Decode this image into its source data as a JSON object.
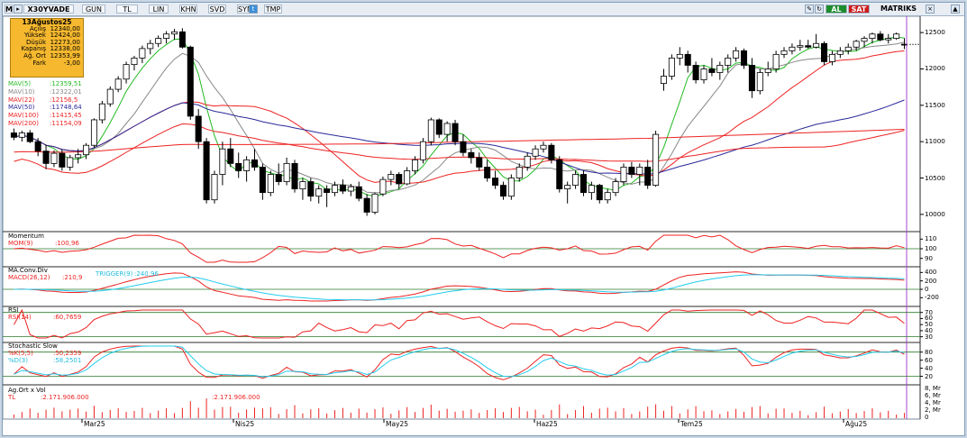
{
  "toolbar": {
    "symbol": "X30YVADE",
    "buttons": [
      "GUN",
      "TL",
      "LIN",
      "KHN",
      "SVD",
      "SYM",
      "TMP"
    ],
    "buy_label": "AL",
    "sell_label": "SAT",
    "brand": "MATRIKS"
  },
  "ohlc": {
    "date": "13Ağustos25",
    "rows": [
      {
        "k": "Açılış",
        "v": "12340,00"
      },
      {
        "k": "Yüksek",
        "v": "12424,00"
      },
      {
        "k": "Düşük",
        "v": "12273,00"
      },
      {
        "k": "Kapanış",
        "v": "12338,00"
      },
      {
        "k": "Ağ. Ort",
        "v": "12353,99"
      },
      {
        "k": "Fark",
        "v": "-3,00"
      }
    ]
  },
  "ma_legend": [
    {
      "name": "MAV(5)",
      "value": ":12359,51",
      "color": "#22bb22"
    },
    {
      "name": "MAV(10)",
      "value": ":12322,01",
      "color": "#888888"
    },
    {
      "name": "MAV(22)",
      "value": ":12156,5",
      "color": "#ee2222"
    },
    {
      "name": "MAV(50)",
      "value": ":11748,64",
      "color": "#2a2a9a"
    },
    {
      "name": "MAV(100)",
      "value": ":11415,45",
      "color": "#ee2222"
    },
    {
      "name": "MAV(200)",
      "value": ":11154,09",
      "color": "#ee2222"
    }
  ],
  "main_y_ticks": [
    "12500",
    "12000",
    "11500",
    "11000",
    "10500",
    "10000"
  ],
  "x_labels": [
    "Mar25",
    "Nis25",
    "May25",
    "Haz25",
    "Tem25",
    "Ağu25"
  ],
  "panels": {
    "momentum": {
      "title": "Momentum",
      "legend": "MOM(9)",
      "value": ":100,96",
      "ticks": [
        "110",
        "100",
        "90"
      ]
    },
    "macd": {
      "title": "MA.Conv.Div",
      "legend": "MACD(26,12)",
      "value": ":210,9",
      "trigger": "TRIGGER(9)",
      "trigger_value": ":240,96",
      "ticks": [
        "400",
        "200",
        "0",
        "-200"
      ]
    },
    "rsi": {
      "title": "RSI",
      "legend": "RSI(14)",
      "value": ":60,7659",
      "ticks": [
        "70",
        "60",
        "50",
        "40",
        "30"
      ]
    },
    "stoch": {
      "title": "Stochastic Slow",
      "k_legend": "%K(5,5)",
      "k_value": ":50,2359",
      "d_legend": "%D(3)",
      "d_value": ":58,2501",
      "ticks": [
        "80",
        "60",
        "40",
        "20"
      ]
    },
    "volume": {
      "title": "Ag.Ort x Vol",
      "legend": "TL",
      "value1": ":2.171.906.000",
      "value2": ":2.171.906.000",
      "ticks": [
        "8, Mr",
        "6, Mr",
        "4, Mr",
        "2, Mr",
        "0"
      ]
    }
  },
  "colors": {
    "up": "#ffffff",
    "down": "#000000",
    "panel_line": "#ee2222",
    "signal_line": "#22ccee",
    "cursor": "#aa44cc"
  },
  "chart_data": {
    "type": "candlestick",
    "price_range": [
      9800,
      12700
    ],
    "candles": [
      [
        11120,
        11180,
        11020,
        11060
      ],
      [
        11060,
        11150,
        11000,
        11120
      ],
      [
        11120,
        11160,
        10980,
        11000
      ],
      [
        11000,
        11050,
        10800,
        10870
      ],
      [
        10870,
        10960,
        10620,
        10700
      ],
      [
        10700,
        10880,
        10650,
        10840
      ],
      [
        10840,
        10900,
        10600,
        10650
      ],
      [
        10650,
        10820,
        10600,
        10780
      ],
      [
        10780,
        10900,
        10700,
        10820
      ],
      [
        10820,
        10980,
        10760,
        10950
      ],
      [
        10950,
        11320,
        10920,
        11300
      ],
      [
        11300,
        11560,
        11250,
        11520
      ],
      [
        11520,
        11760,
        11480,
        11720
      ],
      [
        11720,
        11900,
        11680,
        11860
      ],
      [
        11860,
        12100,
        11800,
        12060
      ],
      [
        12060,
        12180,
        11980,
        12150
      ],
      [
        12150,
        12320,
        12080,
        12280
      ],
      [
        12280,
        12400,
        12200,
        12350
      ],
      [
        12350,
        12460,
        12300,
        12420
      ],
      [
        12420,
        12520,
        12350,
        12480
      ],
      [
        12480,
        12550,
        12400,
        12510
      ],
      [
        12510,
        12560,
        12280,
        12300
      ],
      [
        12300,
        12320,
        11300,
        11350
      ],
      [
        11350,
        11450,
        10900,
        11000
      ],
      [
        11000,
        11050,
        10150,
        10200
      ],
      [
        10200,
        10600,
        10150,
        10550
      ],
      [
        10550,
        11000,
        10400,
        10900
      ],
      [
        10900,
        11050,
        10650,
        10700
      ],
      [
        10700,
        10850,
        10500,
        10600
      ],
      [
        10600,
        10800,
        10450,
        10750
      ],
      [
        10750,
        10900,
        10600,
        10650
      ],
      [
        10650,
        10700,
        10200,
        10300
      ],
      [
        10300,
        10600,
        10250,
        10550
      ],
      [
        10550,
        10700,
        10400,
        10450
      ],
      [
        10450,
        10780,
        10400,
        10700
      ],
      [
        10700,
        10750,
        10300,
        10350
      ],
      [
        10350,
        10500,
        10200,
        10450
      ],
      [
        10450,
        10500,
        10180,
        10250
      ],
      [
        10250,
        10400,
        10150,
        10350
      ],
      [
        10350,
        10400,
        10100,
        10300
      ],
      [
        10300,
        10450,
        10250,
        10400
      ],
      [
        10400,
        10480,
        10280,
        10320
      ],
      [
        10320,
        10420,
        10250,
        10380
      ],
      [
        10380,
        10450,
        10180,
        10220
      ],
      [
        10220,
        10280,
        9980,
        10030
      ],
      [
        10030,
        10300,
        10000,
        10280
      ],
      [
        10280,
        10520,
        10250,
        10480
      ],
      [
        10480,
        10600,
        10400,
        10550
      ],
      [
        10550,
        10580,
        10350,
        10420
      ],
      [
        10420,
        10650,
        10400,
        10600
      ],
      [
        10600,
        10800,
        10550,
        10750
      ],
      [
        10750,
        11050,
        10700,
        11000
      ],
      [
        11000,
        11330,
        10950,
        11300
      ],
      [
        11300,
        11320,
        11050,
        11100
      ],
      [
        11100,
        11280,
        11000,
        11250
      ],
      [
        11250,
        11300,
        10950,
        11000
      ],
      [
        11000,
        11100,
        10800,
        10850
      ],
      [
        10850,
        10900,
        10700,
        10780
      ],
      [
        10780,
        10850,
        10600,
        10650
      ],
      [
        10650,
        10750,
        10450,
        10500
      ],
      [
        10500,
        10600,
        10350,
        10400
      ],
      [
        10400,
        10450,
        10200,
        10250
      ],
      [
        10250,
        10550,
        10200,
        10500
      ],
      [
        10500,
        10700,
        10450,
        10650
      ],
      [
        10650,
        10850,
        10600,
        10800
      ],
      [
        10800,
        10950,
        10750,
        10900
      ],
      [
        10900,
        11000,
        10850,
        10950
      ],
      [
        10950,
        10980,
        10700,
        10750
      ],
      [
        10750,
        10800,
        10300,
        10350
      ],
      [
        10350,
        10450,
        10150,
        10400
      ],
      [
        10400,
        10600,
        10350,
        10550
      ],
      [
        10550,
        10600,
        10250,
        10300
      ],
      [
        10300,
        10450,
        10200,
        10400
      ],
      [
        10400,
        10420,
        10150,
        10200
      ],
      [
        10200,
        10350,
        10150,
        10300
      ],
      [
        10300,
        10500,
        10250,
        10450
      ],
      [
        10450,
        10700,
        10400,
        10650
      ],
      [
        10650,
        10720,
        10500,
        10550
      ],
      [
        10550,
        10700,
        10400,
        10650
      ],
      [
        10650,
        10750,
        10350,
        10400
      ],
      [
        10400,
        11150,
        10380,
        11100
      ],
      [
        11800,
        12000,
        11700,
        11900
      ],
      [
        11900,
        12200,
        11850,
        12150
      ],
      [
        12150,
        12300,
        12050,
        12200
      ],
      [
        12200,
        12250,
        11950,
        12050
      ],
      [
        12050,
        12100,
        11800,
        11850
      ],
      [
        11850,
        12050,
        11800,
        12000
      ],
      [
        12000,
        12150,
        11900,
        11950
      ],
      [
        11950,
        12100,
        11850,
        12050
      ],
      [
        12050,
        12200,
        11950,
        12150
      ],
      [
        12150,
        12300,
        12100,
        12250
      ],
      [
        12250,
        12280,
        12000,
        12050
      ],
      [
        12050,
        12150,
        11600,
        11700
      ],
      [
        11700,
        12000,
        11650,
        11950
      ],
      [
        11950,
        12100,
        11900,
        12000
      ],
      [
        12000,
        12250,
        11950,
        12200
      ],
      [
        12200,
        12300,
        12150,
        12250
      ],
      [
        12250,
        12350,
        12200,
        12300
      ],
      [
        12300,
        12400,
        12250,
        12320
      ],
      [
        12320,
        12400,
        12280,
        12300
      ],
      [
        12300,
        12480,
        12280,
        12350
      ],
      [
        12350,
        12380,
        12050,
        12100
      ],
      [
        12100,
        12250,
        12050,
        12200
      ],
      [
        12200,
        12300,
        12150,
        12250
      ],
      [
        12250,
        12350,
        12200,
        12300
      ],
      [
        12300,
        12400,
        12250,
        12380
      ],
      [
        12380,
        12450,
        12300,
        12420
      ],
      [
        12420,
        12500,
        12350,
        12480
      ],
      [
        12480,
        12520,
        12380,
        12400
      ],
      [
        12400,
        12480,
        12350,
        12420
      ],
      [
        12420,
        12500,
        12400,
        12480
      ],
      [
        12340,
        12424,
        12273,
        12338
      ]
    ]
  }
}
